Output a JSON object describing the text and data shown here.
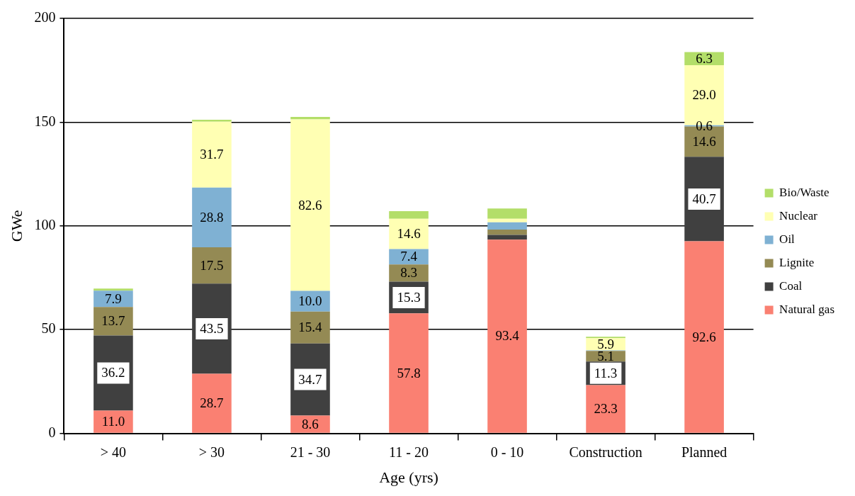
{
  "chart_data": {
    "type": "bar",
    "stacked": true,
    "xlabel": "Age (yrs)",
    "ylabel": "GWe",
    "categories": [
      "> 40",
      "> 30",
      "21 - 30",
      "11 - 20",
      "0 - 10",
      "Construction",
      "Planned"
    ],
    "series": [
      {
        "name": "Natural gas",
        "color": "#fa8072",
        "values": [
          11.0,
          28.7,
          8.6,
          57.8,
          93.4,
          23.3,
          92.6
        ],
        "value_labels": [
          "11.0",
          "28.7",
          "8.6",
          "57.8",
          "93.4",
          "23.3",
          "92.6"
        ]
      },
      {
        "name": "Coal",
        "color": "#404040",
        "values": [
          36.2,
          43.5,
          34.7,
          15.3,
          2.3,
          11.3,
          40.7
        ],
        "value_labels": [
          "36.2",
          "43.5",
          "34.7",
          "15.3",
          null,
          "11.3",
          "40.7"
        ]
      },
      {
        "name": "Lignite",
        "color": "#948a54",
        "values": [
          13.7,
          17.5,
          15.4,
          8.3,
          2.5,
          5.1,
          14.6
        ],
        "value_labels": [
          "13.7",
          "17.5",
          "15.4",
          "8.3",
          null,
          "5.1",
          "14.6"
        ]
      },
      {
        "name": "Oil",
        "color": "#7fb1d3",
        "values": [
          7.9,
          28.8,
          10.0,
          7.4,
          3.5,
          0.3,
          0.6
        ],
        "value_labels": [
          "7.9",
          "28.8",
          "10.0",
          "7.4",
          null,
          null,
          "0.6"
        ]
      },
      {
        "name": "Nuclear",
        "color": "#ffffb3",
        "values": [
          0,
          31.7,
          82.6,
          14.6,
          1.7,
          5.9,
          29.0
        ],
        "value_labels": [
          null,
          "31.7",
          "82.6",
          "14.6",
          null,
          "5.9",
          "29.0"
        ]
      },
      {
        "name": "Bio/Waste",
        "color": "#b3de69",
        "values": [
          1.0,
          1.0,
          1.2,
          3.7,
          5.0,
          0.7,
          6.3
        ],
        "value_labels": [
          null,
          null,
          null,
          null,
          null,
          null,
          "6.3"
        ]
      }
    ],
    "ylim": [
      0,
      200
    ],
    "yticks": [
      0,
      50,
      100,
      150,
      200
    ],
    "grid": "y",
    "legend": "right"
  }
}
